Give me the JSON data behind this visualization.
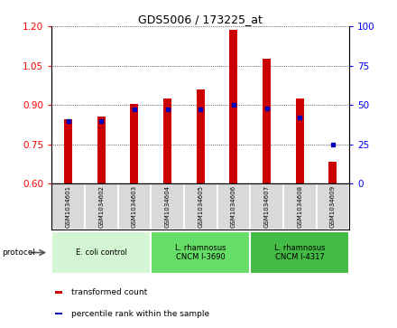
{
  "title": "GDS5006 / 173225_at",
  "samples": [
    "GSM1034601",
    "GSM1034602",
    "GSM1034603",
    "GSM1034604",
    "GSM1034605",
    "GSM1034606",
    "GSM1034607",
    "GSM1034608",
    "GSM1034609"
  ],
  "transformed_count": [
    0.845,
    0.855,
    0.905,
    0.925,
    0.96,
    1.185,
    1.075,
    0.925,
    0.685
  ],
  "percentile_rank_pct": [
    40,
    40,
    47,
    47,
    47,
    50,
    48,
    42,
    25
  ],
  "ylim_left": [
    0.6,
    1.2
  ],
  "ylim_right": [
    0,
    100
  ],
  "yticks_left": [
    0.6,
    0.75,
    0.9,
    1.05,
    1.2
  ],
  "yticks_right": [
    0,
    25,
    50,
    75,
    100
  ],
  "bar_color": "#cc0000",
  "dot_color": "#0000bb",
  "bar_bottom": 0.6,
  "groups": [
    {
      "label": "E. coli control",
      "indices": [
        0,
        1,
        2
      ],
      "color": "#d4f5d4"
    },
    {
      "label": "L. rhamnosus\nCNCM I-3690",
      "indices": [
        3,
        4,
        5
      ],
      "color": "#66dd66"
    },
    {
      "label": "L. rhamnosus\nCNCM I-4317",
      "indices": [
        6,
        7,
        8
      ],
      "color": "#44bb44"
    }
  ],
  "protocol_label": "protocol",
  "legend": [
    {
      "label": "transformed count",
      "color": "#cc0000"
    },
    {
      "label": "percentile rank within the sample",
      "color": "#0000bb"
    }
  ],
  "fig_width": 4.4,
  "fig_height": 3.63,
  "fig_dpi": 100
}
